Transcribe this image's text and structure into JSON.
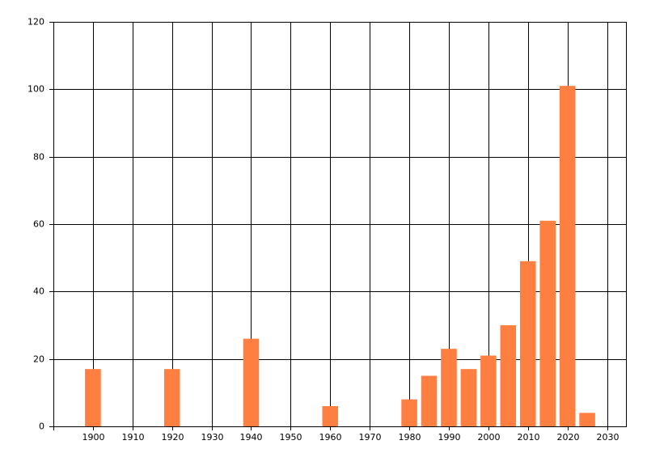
{
  "chart_data": {
    "type": "bar",
    "x": [
      1900,
      1920,
      1940,
      1960,
      1980,
      1985,
      1990,
      1995,
      2000,
      2005,
      2010,
      2015,
      2020,
      2025
    ],
    "values": [
      17,
      17,
      26,
      6,
      8,
      15,
      23,
      17,
      21,
      30,
      49,
      61,
      101,
      4
    ],
    "color": "#ff7f41",
    "xlim": [
      1890,
      2035
    ],
    "xticks": [
      1900,
      1910,
      1920,
      1930,
      1940,
      1950,
      1960,
      1970,
      1980,
      1990,
      2000,
      2010,
      2020,
      2030
    ],
    "ylim": [
      0,
      120
    ],
    "yticks": [
      0,
      20,
      40,
      60,
      80,
      100,
      120
    ],
    "grid": true
  }
}
